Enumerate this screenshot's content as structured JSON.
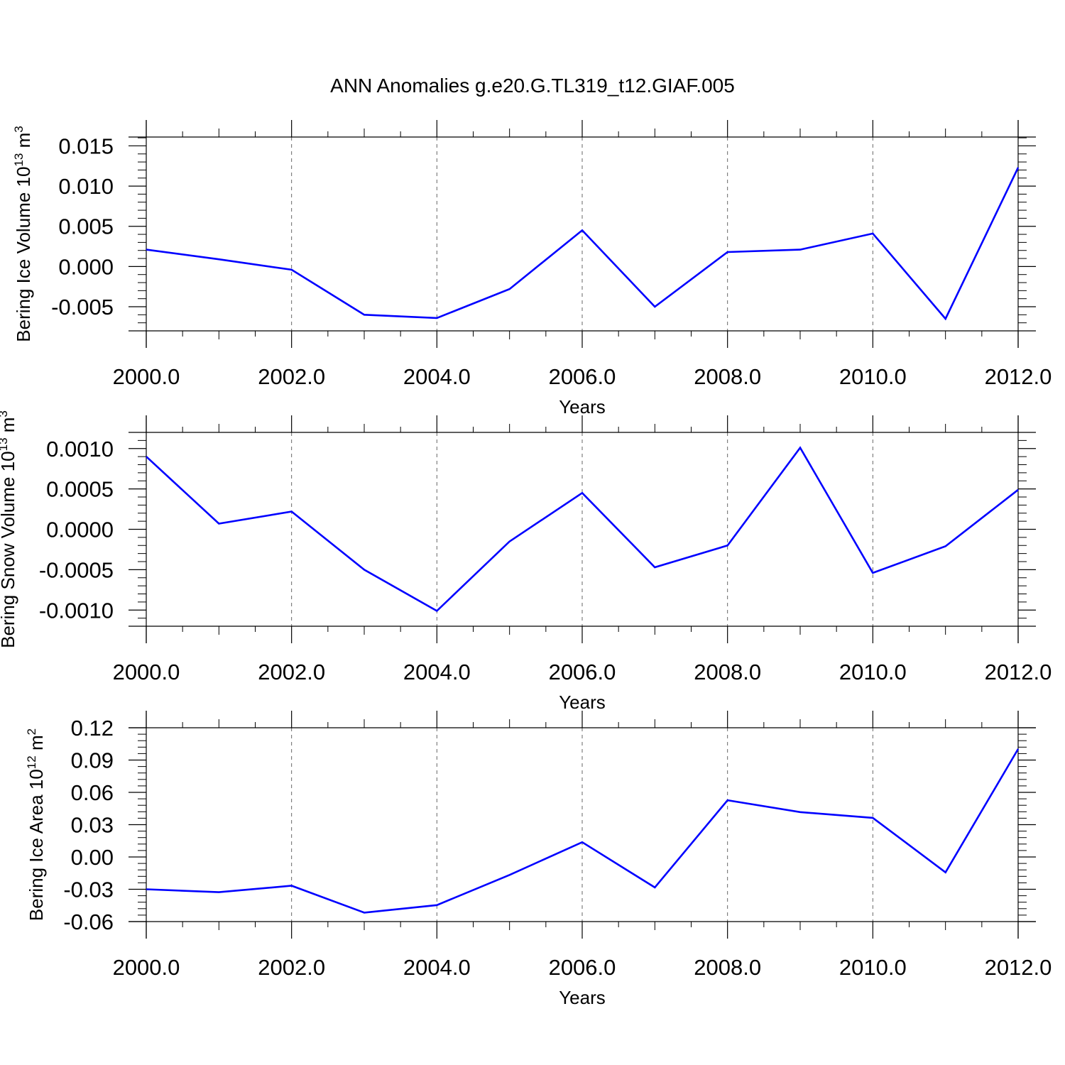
{
  "title": "ANN Anomalies g.e20.G.TL319_t12.GIAF.005",
  "colors": {
    "line": "#0000ff",
    "axis": "#000000",
    "grid": "#666666"
  },
  "chart_data": [
    {
      "type": "line",
      "ylabel": "Bering Ice Volume 10",
      "ylabel_exp": "13",
      "ylabel_unit": " m",
      "ylabel_unit_exp": "3",
      "xlabel": "Years",
      "xlim": [
        2000,
        2012
      ],
      "ylim": [
        -0.008,
        0.0161
      ],
      "xticks": [
        "2000.0",
        "2002.0",
        "2004.0",
        "2006.0",
        "2008.0",
        "2010.0",
        "2012.0"
      ],
      "yticks": [
        "0.015",
        "0.010",
        "0.005",
        "0.000",
        "-0.005"
      ],
      "ytick_values": [
        0.015,
        0.01,
        0.005,
        0.0,
        -0.005
      ],
      "grid": "vertical dashed at major x ticks",
      "x": [
        2000,
        2001,
        2002,
        2003,
        2004,
        2005,
        2006,
        2007,
        2008,
        2009,
        2010,
        2011,
        2012
      ],
      "series": [
        {
          "values": [
            0.0021,
            0.0009,
            -0.0004,
            -0.006,
            -0.0064,
            -0.0028,
            0.0045,
            -0.005,
            0.0018,
            0.0021,
            0.0041,
            -0.0065,
            0.0123
          ]
        }
      ]
    },
    {
      "type": "line",
      "ylabel": "Bering Snow Volume 10",
      "ylabel_exp": "13",
      "ylabel_unit": " m",
      "ylabel_unit_exp": "3",
      "xlabel": "Years",
      "xlim": [
        2000,
        2012
      ],
      "ylim": [
        -0.0012,
        0.0012
      ],
      "xticks": [
        "2000.0",
        "2002.0",
        "2004.0",
        "2006.0",
        "2008.0",
        "2010.0",
        "2012.0"
      ],
      "yticks": [
        "0.0010",
        "0.0005",
        "0.0000",
        "-0.0005",
        "-0.0010"
      ],
      "ytick_values": [
        0.001,
        0.0005,
        0.0,
        -0.0005,
        -0.001
      ],
      "grid": "vertical dashed at major x ticks",
      "x": [
        2000,
        2001,
        2002,
        2003,
        2004,
        2005,
        2006,
        2007,
        2008,
        2009,
        2010,
        2011,
        2012
      ],
      "series": [
        {
          "values": [
            0.0009,
            7e-05,
            0.00022,
            -0.0005,
            -0.00101,
            -0.00015,
            0.00045,
            -0.00047,
            -0.0002,
            0.00101,
            -0.00054,
            -0.00021,
            0.00049
          ]
        }
      ]
    },
    {
      "type": "line",
      "ylabel": "Bering Ice Area 10",
      "ylabel_exp": "12",
      "ylabel_unit": " m",
      "ylabel_unit_exp": "2",
      "xlabel": "Years",
      "xlim": [
        2000,
        2012
      ],
      "ylim": [
        -0.06,
        0.12
      ],
      "xticks": [
        "2000.0",
        "2002.0",
        "2004.0",
        "2006.0",
        "2008.0",
        "2010.0",
        "2012.0"
      ],
      "yticks": [
        "0.12",
        "0.09",
        "0.06",
        "0.03",
        "0.00",
        "-0.03",
        "-0.06"
      ],
      "ytick_values": [
        0.12,
        0.09,
        0.06,
        0.03,
        0.0,
        -0.03,
        -0.06
      ],
      "grid": "vertical dashed at major x ticks",
      "x": [
        2000,
        2001,
        2002,
        2003,
        2004,
        2005,
        2006,
        2007,
        2008,
        2009,
        2010,
        2011,
        2012
      ],
      "series": [
        {
          "values": [
            -0.03,
            -0.0327,
            -0.0267,
            -0.0517,
            -0.0447,
            -0.0167,
            0.0137,
            -0.0283,
            0.0527,
            0.0417,
            0.0363,
            -0.0143,
            0.1003
          ]
        }
      ]
    }
  ]
}
